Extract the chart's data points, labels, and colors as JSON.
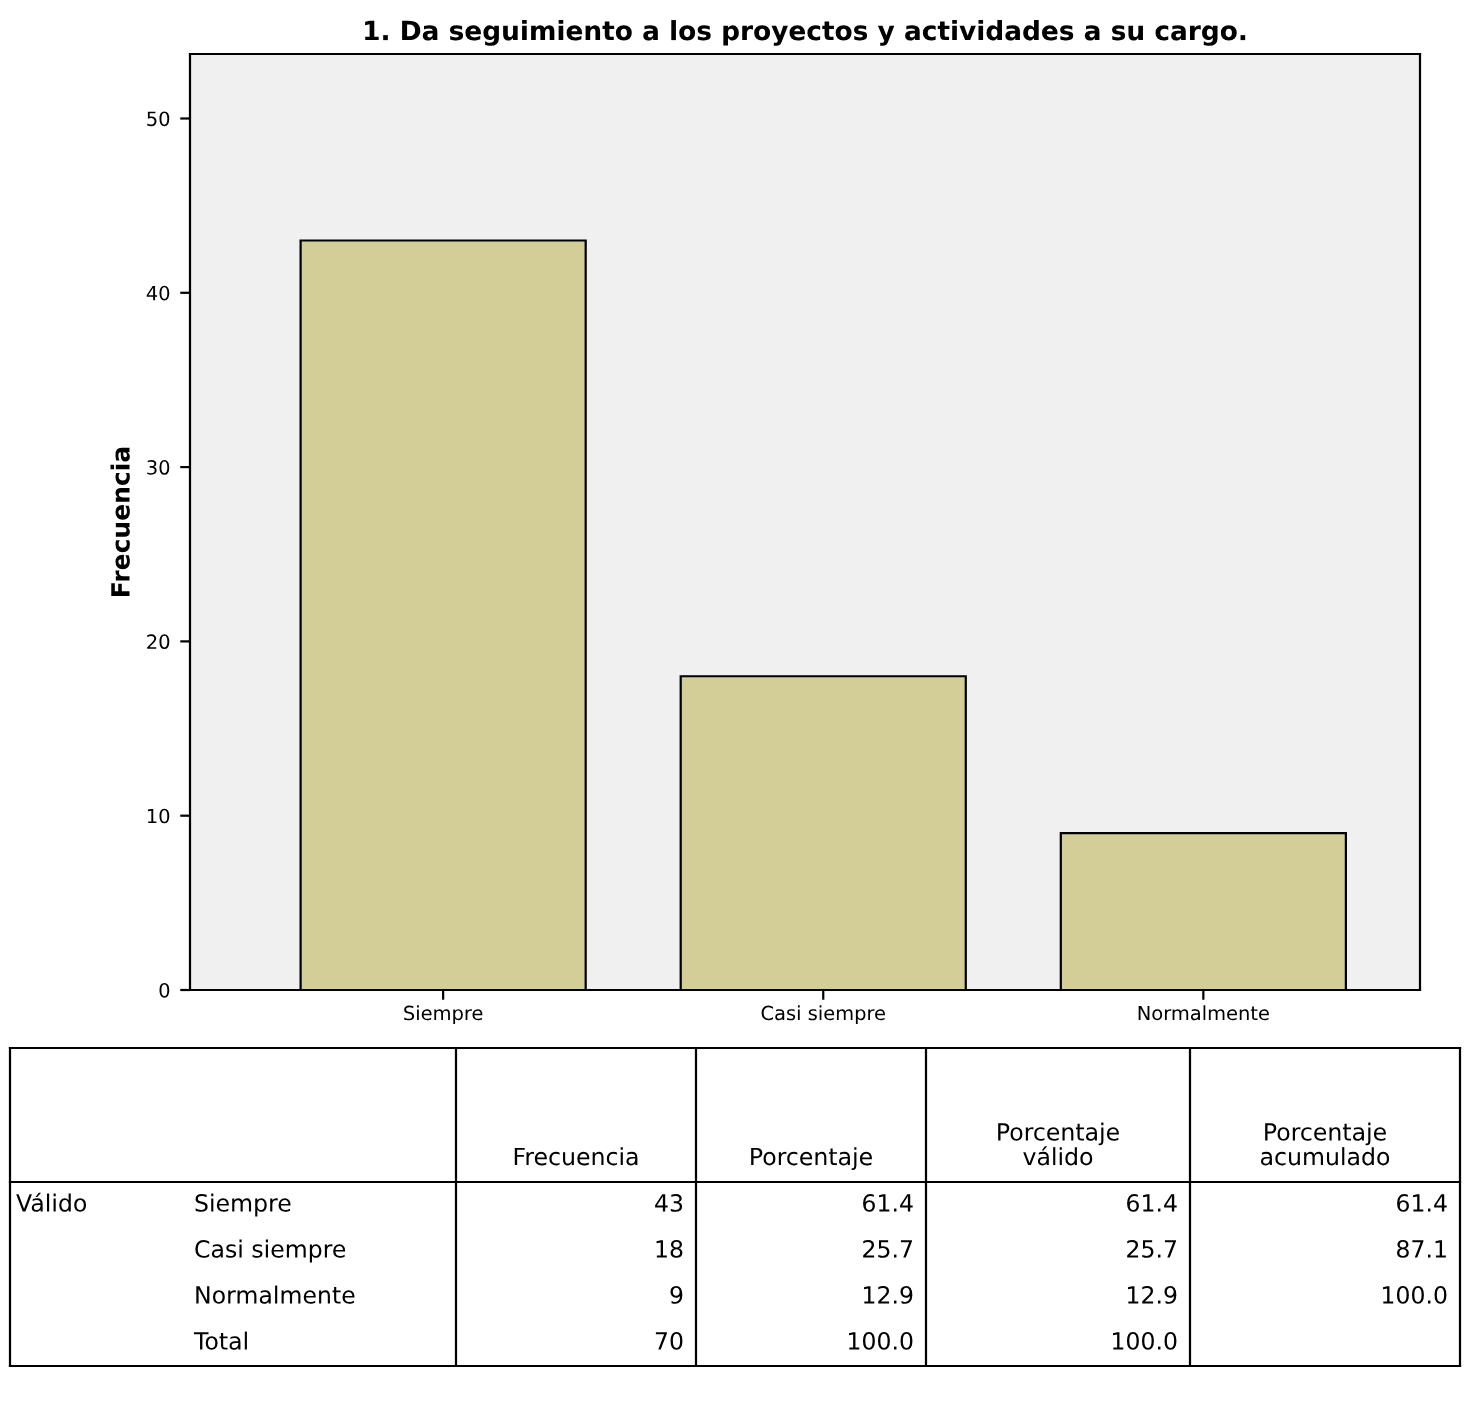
{
  "chart_data": {
    "type": "bar",
    "title": "1. Da seguimiento a los proyectos y actividades a su cargo.",
    "ylabel": "Frecuencia",
    "categories": [
      "Siempre",
      "Casi siempre",
      "Normalmente"
    ],
    "values": [
      43,
      18,
      9
    ],
    "color": "#d3ce98",
    "ylim": [
      0,
      53.7
    ],
    "yticks": [
      0,
      10,
      20,
      30,
      40,
      50
    ],
    "grid": false,
    "annotations": [
      "Frecuencia",
      "Porcentaje",
      "Porcentaje válido",
      "Porcentaje acumulado",
      "Válido",
      "43",
      "61.4",
      "61.4",
      "61.4",
      "18",
      "25.7",
      "25.7",
      "87.1",
      "9",
      "12.9",
      "12.9",
      "100.0",
      "Total",
      "70",
      "100.0",
      "100.0"
    ]
  }
}
